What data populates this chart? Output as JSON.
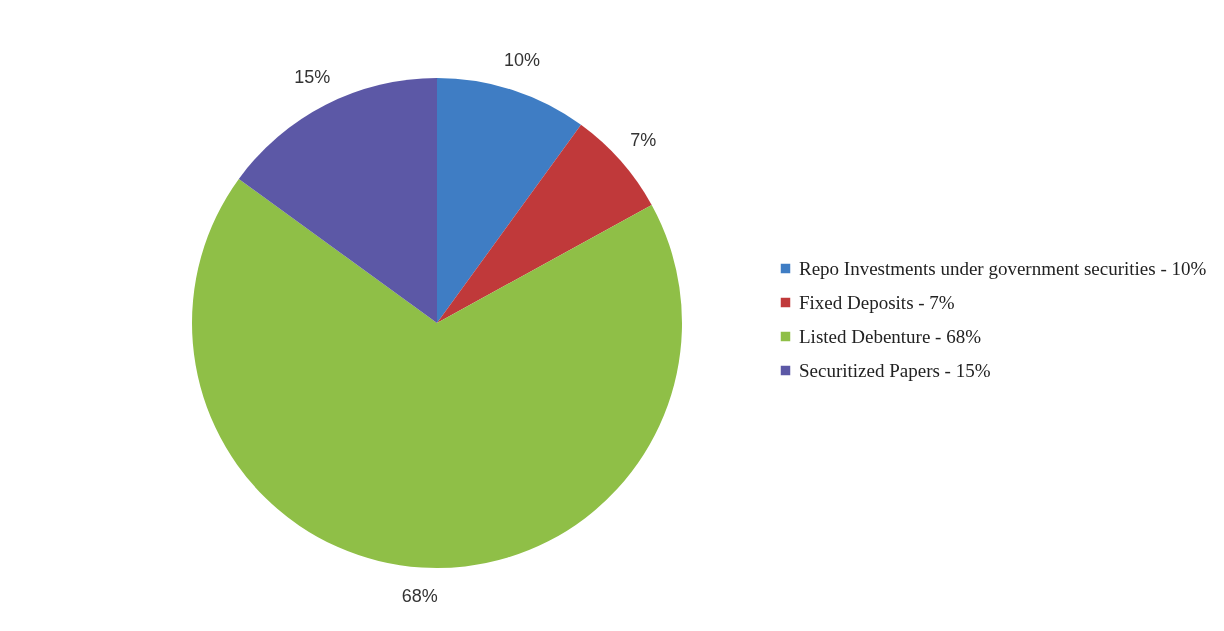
{
  "chart_data": {
    "type": "pie",
    "categories": [
      "Repo Investments under government securities - 10%",
      "Fixed Deposits - 7%",
      "Listed Debenture - 68%",
      "Securitized Papers - 15%"
    ],
    "values": [
      10,
      7,
      68,
      15
    ],
    "colors": [
      "#3f7dc4",
      "#c0393a",
      "#8fbf47",
      "#5c58a6"
    ],
    "value_labels": [
      "10%",
      "7%",
      "68%",
      "15%"
    ],
    "legend": "right"
  }
}
